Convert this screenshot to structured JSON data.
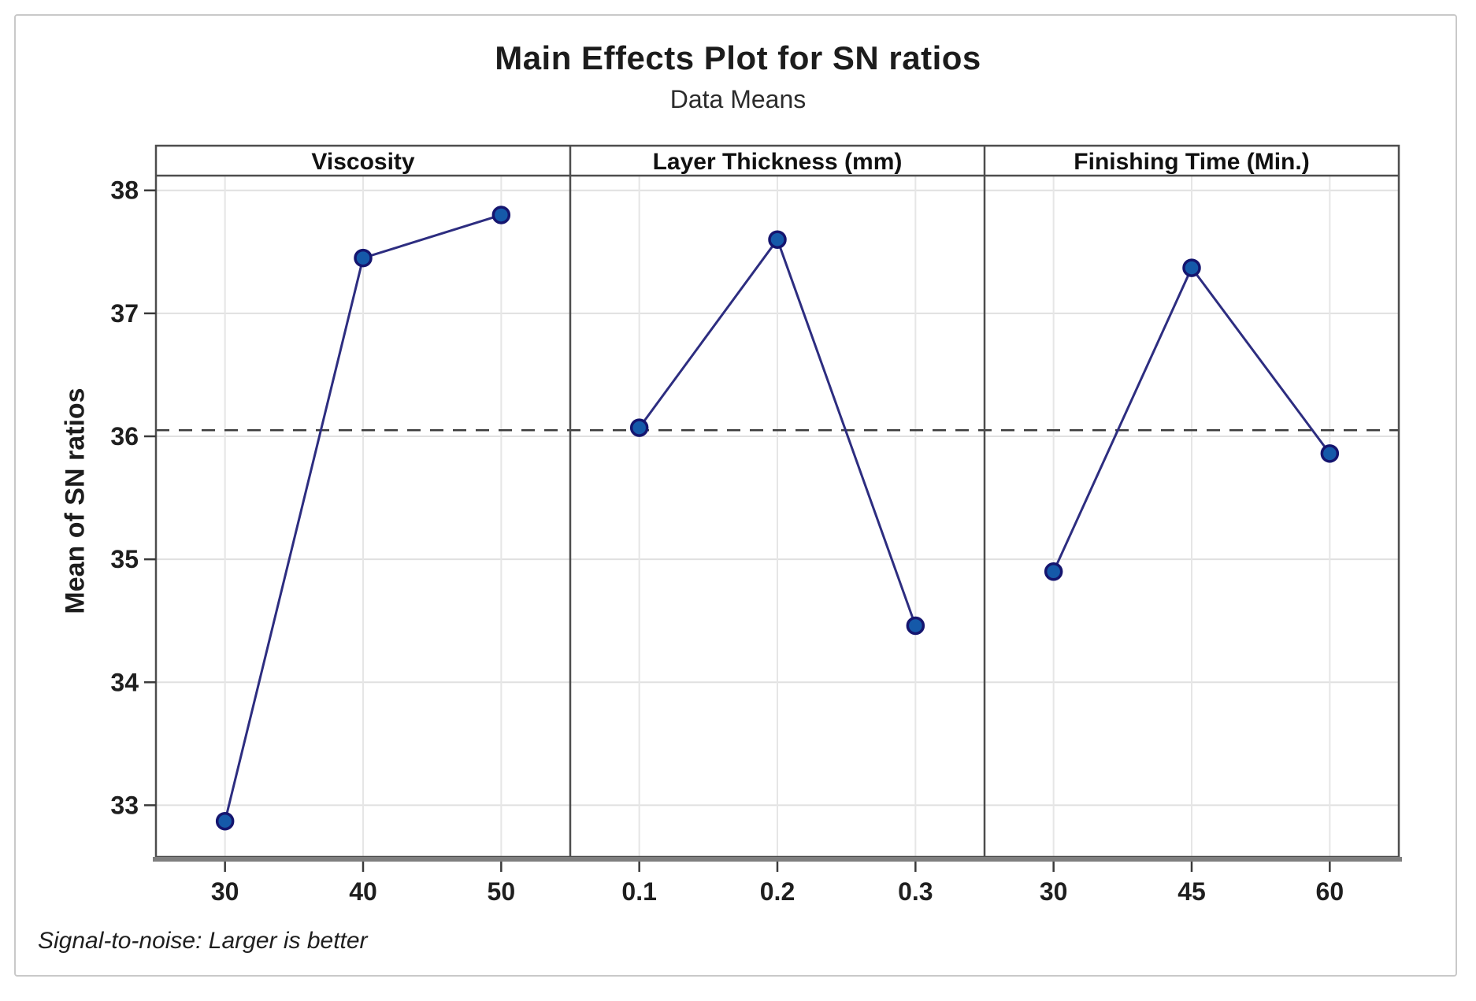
{
  "chart_data": {
    "type": "line",
    "title": "Main Effects Plot for SN ratios",
    "subtitle": "Data Means",
    "ylabel": "Mean of SN ratios",
    "footnote": "Signal-to-noise: Larger is better",
    "ylim": [
      32.58,
      38.12
    ],
    "yticks": [
      38,
      37,
      36,
      35,
      34,
      33
    ],
    "grid": true,
    "legend_position": "none",
    "reference_line": {
      "value": 36.05,
      "style": "dashed"
    },
    "panels": [
      {
        "header": "Viscosity",
        "categories": [
          "30",
          "40",
          "50"
        ],
        "values": [
          32.87,
          37.45,
          37.8
        ]
      },
      {
        "header": "Layer Thickness  (mm)",
        "categories": [
          "0.1",
          "0.2",
          "0.3"
        ],
        "values": [
          36.07,
          37.6,
          34.46
        ]
      },
      {
        "header": "Finishing Time (Min.)",
        "categories": [
          "30",
          "45",
          "60"
        ],
        "values": [
          34.9,
          37.37,
          35.86
        ]
      }
    ]
  },
  "colors": {
    "marker_fill": "#1559a9",
    "marker_stroke": "#15156f",
    "series_line": "#2d2d80",
    "grid_line": "#e0e0e0",
    "grid_line_vertical": "#e6e6e6",
    "panel_border": "#4d4d4d",
    "axis_baseline": "#7f7f7f",
    "tick_mark": "#3a3a3a",
    "reference_dashed": "#3c3c3c",
    "frame_border": "#c9c9c9",
    "text": "#1c1c1c"
  }
}
